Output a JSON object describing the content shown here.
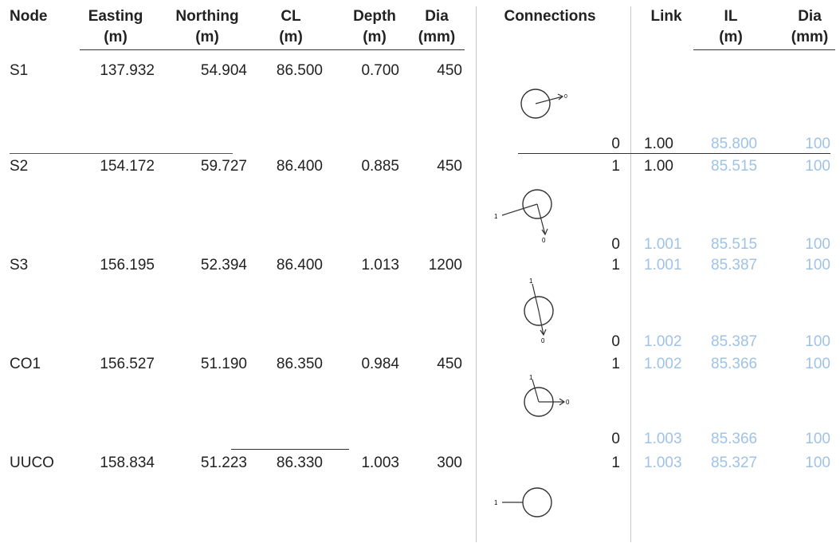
{
  "headers": {
    "node": "Node",
    "easting": [
      "Easting",
      "(m)"
    ],
    "northing": [
      "Northing",
      "(m)"
    ],
    "cl": [
      "CL",
      "(m)"
    ],
    "depth": [
      "Depth",
      "(m)"
    ],
    "dia": [
      "Dia",
      "(mm)"
    ],
    "connections": "Connections",
    "link": "Link",
    "il": [
      "IL",
      "(m)"
    ],
    "dia2": [
      "Dia",
      "(mm)"
    ]
  },
  "nodes": [
    {
      "node": "S1",
      "easting": "137.932",
      "northing": "54.904",
      "cl": "86.500",
      "depth": "0.700",
      "dia": "450",
      "links": [
        {
          "port": "0",
          "link": "1.00",
          "il": "85.800",
          "dia": "100",
          "color": "blue"
        }
      ]
    },
    {
      "node": "S2",
      "easting": "154.172",
      "northing": "59.727",
      "cl": "86.400",
      "depth": "0.885",
      "dia": "450",
      "links": [
        {
          "port": "1",
          "link": "1.00",
          "il": "85.515",
          "dia": "100"
        },
        {
          "port": "0",
          "link": "1.001",
          "il": "85.515",
          "dia": "100"
        }
      ]
    },
    {
      "node": "S3",
      "easting": "156.195",
      "northing": "52.394",
      "cl": "86.400",
      "depth": "1.013",
      "dia": "1200",
      "links": [
        {
          "port": "1",
          "link": "1.001",
          "il": "85.387",
          "dia": "100"
        },
        {
          "port": "0",
          "link": "1.002",
          "il": "85.387",
          "dia": "100"
        }
      ]
    },
    {
      "node": "CO1",
      "easting": "156.527",
      "northing": "51.190",
      "cl": "86.350",
      "depth": "0.984",
      "dia": "450",
      "links": [
        {
          "port": "1",
          "link": "1.002",
          "il": "85.366",
          "dia": "100"
        },
        {
          "port": "0",
          "link": "1.003",
          "il": "85.366",
          "dia": "100"
        }
      ]
    },
    {
      "node": "UUCO",
      "easting": "158.834",
      "northing": "51.223",
      "cl": "86.330",
      "depth": "1.003",
      "dia": "300",
      "links": [
        {
          "port": "1",
          "link": "1.003",
          "il": "85.327",
          "dia": "100"
        }
      ]
    }
  ],
  "diagram_labels": {
    "s1_out": "0",
    "s2_in": "1",
    "s2_out": "0",
    "s3_in": "1",
    "s3_out": "0",
    "co1_in": "1",
    "co1_out": "0",
    "uuco_in": "1"
  },
  "colors": {
    "text": "#222222",
    "blue_text": "#9fc3e6",
    "rule": "#333333"
  }
}
